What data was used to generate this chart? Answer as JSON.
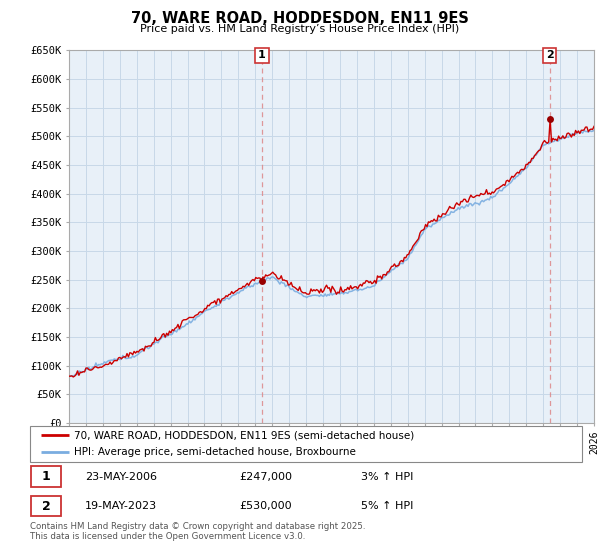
{
  "title": "70, WARE ROAD, HODDESDON, EN11 9ES",
  "subtitle": "Price paid vs. HM Land Registry’s House Price Index (HPI)",
  "ylim": [
    0,
    650000
  ],
  "xlim_start": 1995.0,
  "xlim_end": 2026.0,
  "sale1_x": 2006.39,
  "sale1_y": 247000,
  "sale1_label": "1",
  "sale2_x": 2023.38,
  "sale2_y": 530000,
  "sale2_label": "2",
  "line_color_red": "#cc0000",
  "line_color_blue": "#7aade0",
  "marker_color_red": "#990000",
  "vline_color": "#dd8888",
  "legend_line1": "70, WARE ROAD, HODDESDON, EN11 9ES (semi-detached house)",
  "legend_line2": "HPI: Average price, semi-detached house, Broxbourne",
  "table_row1": [
    "1",
    "23-MAY-2006",
    "£247,000",
    "3% ↑ HPI"
  ],
  "table_row2": [
    "2",
    "19-MAY-2023",
    "£530,000",
    "5% ↑ HPI"
  ],
  "footnote": "Contains HM Land Registry data © Crown copyright and database right 2025.\nThis data is licensed under the Open Government Licence v3.0.",
  "bg_color": "#e8f0f8",
  "grid_color": "#c8d8e8",
  "fig_bg": "#ffffff"
}
